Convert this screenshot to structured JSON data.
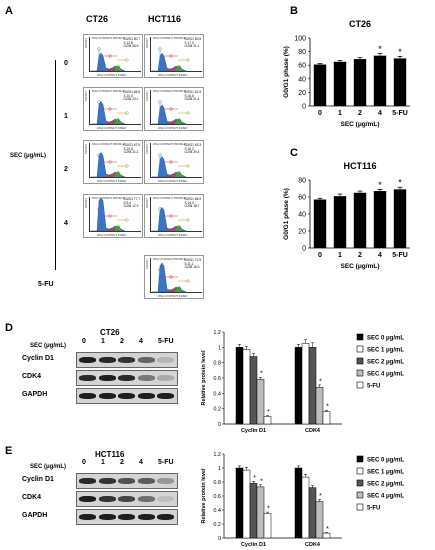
{
  "panelA": {
    "letter": "A",
    "col_headers": [
      "CT26",
      "HCT116"
    ],
    "side_label": "SEC (μg/mL)",
    "row_labels": [
      "0",
      "1",
      "2",
      "4",
      "5-FU"
    ],
    "histo_caption": "DNA CONTENT PROFILE",
    "histo_xlabel": "DNA CONTENT INDEX",
    "histo_ylabel": "COUNT",
    "stat_labels": [
      "G0/G1",
      "S",
      "G2/M"
    ],
    "rows": [
      {
        "ct26": [
          "G0/G1 60.7",
          "S 12.8",
          "G2/M 26.5"
        ],
        "hct": [
          "G0/G1 60.5",
          "S 17.2",
          "G2/M 21.1"
        ]
      },
      {
        "ct26": [
          "G0/G1 65.6",
          "S 10.0",
          "G2/M 24.1"
        ],
        "hct": [
          "G0/G1 61.9",
          "S 16.6",
          "G2/M 21.4"
        ]
      },
      {
        "ct26": [
          "G0/G1 67.9",
          "S 10.8",
          "G2/M 21.2"
        ],
        "hct": [
          "G0/G1 63.3",
          "S 16.2",
          "G2/M 20.4"
        ]
      },
      {
        "ct26": [
          "G0/G1 77.7",
          "S 9.4",
          "G2/M 12.9"
        ],
        "hct": [
          "G0/G1 66.9",
          "S 14.2",
          "G2/M 18.7"
        ]
      },
      {
        "ct26": null,
        "hct": [
          "G0/G1 72.9",
          "S 11.1",
          "G2/M 16.0"
        ]
      }
    ]
  },
  "panelB": {
    "letter": "B"
  },
  "panelC": {
    "letter": "C"
  },
  "panelD": {
    "letter": "D",
    "sec_label": "SEC (μg/mL)",
    "cell_line": "CT26",
    "lanes": [
      "0",
      "1",
      "2",
      "4",
      "5-FU"
    ],
    "rows": [
      "Cyclin D1",
      "CDK4",
      "GAPDH"
    ]
  },
  "panelE": {
    "letter": "E",
    "sec_label": "SEC (μg/mL)",
    "cell_line": "HCT116",
    "lanes": [
      "0",
      "1",
      "2",
      "4",
      "5-FU"
    ],
    "rows": [
      "Cyclin D1",
      "CDK4",
      "GAPDH"
    ]
  },
  "chart_data": [
    {
      "id": "B",
      "type": "bar",
      "title": "CT26",
      "categories": [
        "0",
        "1",
        "2",
        "4",
        "5-FU"
      ],
      "values": [
        61,
        65,
        69,
        74,
        70
      ],
      "errors": [
        1.5,
        2,
        2,
        3,
        3
      ],
      "significant": [
        false,
        false,
        false,
        true,
        true
      ],
      "xlabel": "SEC (μg/mL)",
      "ylabel": "G0/G1 phase (%)",
      "ylim": [
        0,
        100
      ],
      "yticks": [
        0,
        20,
        40,
        60,
        80,
        100
      ]
    },
    {
      "id": "C",
      "type": "bar",
      "title": "HCT116",
      "categories": [
        "0",
        "1",
        "2",
        "4",
        "5-FU"
      ],
      "values": [
        57,
        61,
        65,
        67,
        69
      ],
      "errors": [
        1.5,
        2.5,
        2,
        2,
        2.5
      ],
      "significant": [
        false,
        false,
        false,
        true,
        true
      ],
      "xlabel": "SEC (μg/mL)",
      "ylabel": "G0/G1 phase (%)",
      "ylim": [
        0,
        80
      ],
      "yticks": [
        0,
        20,
        40,
        60,
        80
      ]
    },
    {
      "id": "D",
      "type": "bar",
      "categories": [
        "Cyclin D1",
        "CDK4"
      ],
      "ylabel": "Relative protein level",
      "ylim": [
        0,
        1.2
      ],
      "yticks": [
        0,
        0.2,
        0.4,
        0.6,
        0.8,
        1,
        1.2
      ],
      "series": [
        {
          "name": "SEC 0 μg/mL",
          "color": "#000000",
          "values": [
            1.0,
            1.0
          ],
          "errors": [
            0.04,
            0.04
          ],
          "sig": [
            false,
            false
          ]
        },
        {
          "name": "SEC 1 μg/mL",
          "color": "#ffffff",
          "values": [
            0.97,
            1.05
          ],
          "errors": [
            0.04,
            0.05
          ],
          "sig": [
            false,
            false
          ]
        },
        {
          "name": "SEC 2 μg/mL",
          "color": "#555555",
          "values": [
            0.88,
            1.0
          ],
          "errors": [
            0.04,
            0.06
          ],
          "sig": [
            false,
            false
          ]
        },
        {
          "name": "SEC 4 μg/mL",
          "color": "#bdbdbd",
          "values": [
            0.58,
            0.48
          ],
          "errors": [
            0.03,
            0.03
          ],
          "sig": [
            true,
            true
          ]
        },
        {
          "name": "5-FU",
          "color": "#ffffff",
          "values": [
            0.1,
            0.16
          ],
          "errors": [
            0.01,
            0.02
          ],
          "sig": [
            true,
            true
          ]
        }
      ]
    },
    {
      "id": "E",
      "type": "bar",
      "categories": [
        "Cyclin D1",
        "CDK4"
      ],
      "ylabel": "Relative protein level",
      "ylim": [
        0,
        1.2
      ],
      "yticks": [
        0,
        0.2,
        0.4,
        0.6,
        0.8,
        1,
        1.2
      ],
      "series": [
        {
          "name": "SEC 0 μg/mL",
          "color": "#000000",
          "values": [
            1.0,
            1.0
          ],
          "errors": [
            0.03,
            0.03
          ],
          "sig": [
            false,
            false
          ]
        },
        {
          "name": "SEC 1 μg/mL",
          "color": "#ffffff",
          "values": [
            0.97,
            0.87
          ],
          "errors": [
            0.04,
            0.04
          ],
          "sig": [
            false,
            false
          ]
        },
        {
          "name": "SEC 2 μg/mL",
          "color": "#555555",
          "values": [
            0.78,
            0.72
          ],
          "errors": [
            0.03,
            0.03
          ],
          "sig": [
            true,
            false
          ]
        },
        {
          "name": "SEC 4 μg/mL",
          "color": "#bdbdbd",
          "values": [
            0.73,
            0.52
          ],
          "errors": [
            0.03,
            0.03
          ],
          "sig": [
            true,
            true
          ]
        },
        {
          "name": "5-FU",
          "color": "#ffffff",
          "values": [
            0.35,
            0.07
          ],
          "errors": [
            0.02,
            0.01
          ],
          "sig": [
            true,
            true
          ]
        }
      ]
    }
  ]
}
